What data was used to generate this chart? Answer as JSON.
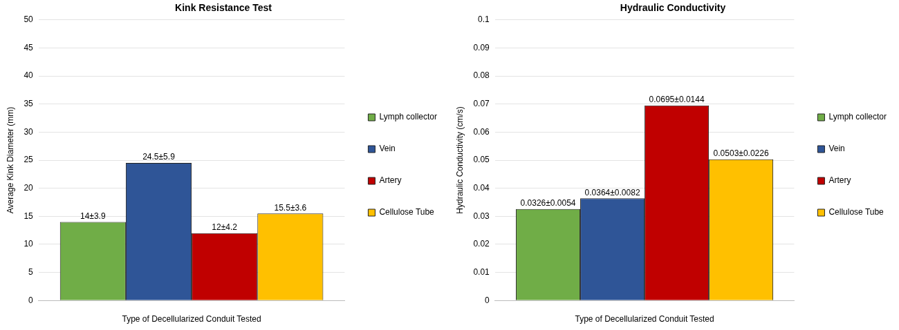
{
  "chart_data": [
    {
      "type": "bar",
      "title": "Kink Resistance Test",
      "xlabel": "Type of Decellularized Conduit Tested",
      "ylabel": "Average Kink Diameter (mm)",
      "categories": [
        null
      ],
      "ylim": [
        0,
        50
      ],
      "yticks": [
        0,
        5,
        10,
        15,
        20,
        25,
        30,
        35,
        40,
        45,
        50
      ],
      "grid": "y",
      "legend": "right",
      "series": [
        {
          "name": "Lymph collector",
          "color": "#70ad47",
          "values": [
            14
          ],
          "value_labels": [
            "14±3.9"
          ]
        },
        {
          "name": "Vein",
          "color": "#2f5597",
          "values": [
            24.5
          ],
          "value_labels": [
            "24.5±5.9"
          ]
        },
        {
          "name": "Artery",
          "color": "#c00000",
          "values": [
            12
          ],
          "value_labels": [
            "12±4.2"
          ]
        },
        {
          "name": "Cellulose Tube",
          "color": "#ffc000",
          "values": [
            15.5
          ],
          "value_labels": [
            "15.5±3.6"
          ]
        }
      ]
    },
    {
      "type": "bar",
      "title": "Hydraulic Conductivity",
      "xlabel": "Type of Decellularized Conduit Tested",
      "ylabel": "Hydraulic Conductivity (cm/s)",
      "categories": [
        null
      ],
      "ylim": [
        0,
        0.1
      ],
      "yticks": [
        0,
        0.01,
        0.02,
        0.03,
        0.04,
        0.05,
        0.06,
        0.07,
        0.08,
        0.09,
        0.1
      ],
      "grid": "y",
      "legend": "right",
      "series": [
        {
          "name": "Lymph collector",
          "color": "#70ad47",
          "values": [
            0.0326
          ],
          "value_labels": [
            "0.0326±0.0054"
          ]
        },
        {
          "name": "Vein",
          "color": "#2f5597",
          "values": [
            0.0364
          ],
          "value_labels": [
            "0.0364±0.0082"
          ]
        },
        {
          "name": "Artery",
          "color": "#c00000",
          "values": [
            0.0695
          ],
          "value_labels": [
            "0.0695±0.0144"
          ]
        },
        {
          "name": "Cellulose Tube",
          "color": "#ffc000",
          "values": [
            0.0503
          ],
          "value_labels": [
            "0.0503±0.0226"
          ]
        }
      ]
    }
  ]
}
